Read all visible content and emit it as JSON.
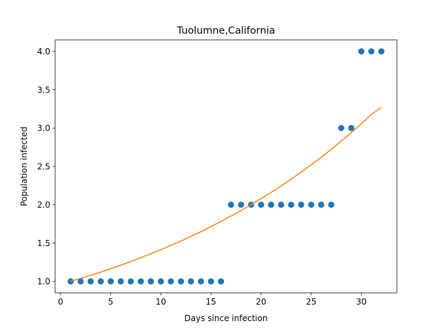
{
  "chart_data": {
    "type": "scatter",
    "title": "Tuolumne,California",
    "xlabel": "Days since infection",
    "ylabel": "Population infected",
    "xlim": [
      -0.55,
      33.55
    ],
    "ylim": [
      0.85,
      4.15
    ],
    "xticks": [
      0,
      5,
      10,
      15,
      20,
      25,
      30
    ],
    "xtick_labels": [
      "0",
      "5",
      "10",
      "15",
      "20",
      "25",
      "30"
    ],
    "yticks": [
      1.0,
      1.5,
      2.0,
      2.5,
      3.0,
      3.5,
      4.0
    ],
    "ytick_labels": [
      "1.0",
      "1.5",
      "2.0",
      "2.5",
      "3.0",
      "3.5",
      "4.0"
    ],
    "grid": false,
    "series": [
      {
        "kind": "scatter",
        "color": "#1f77b4",
        "x": [
          1,
          2,
          3,
          4,
          5,
          6,
          7,
          8,
          9,
          10,
          11,
          12,
          13,
          14,
          15,
          16,
          17,
          18,
          19,
          20,
          21,
          22,
          23,
          24,
          25,
          26,
          27,
          28,
          29,
          30,
          31,
          32
        ],
        "y": [
          1,
          1,
          1,
          1,
          1,
          1,
          1,
          1,
          1,
          1,
          1,
          1,
          1,
          1,
          1,
          1,
          2,
          2,
          2,
          2,
          2,
          2,
          2,
          2,
          2,
          2,
          2,
          3,
          3,
          4,
          4,
          4
        ]
      },
      {
        "kind": "line",
        "color": "#ff7f0e",
        "x": [
          1,
          2,
          3,
          4,
          5,
          6,
          7,
          8,
          9,
          10,
          11,
          12,
          13,
          14,
          15,
          16,
          17,
          18,
          19,
          20,
          21,
          22,
          23,
          24,
          25,
          26,
          27,
          28,
          29,
          30,
          31,
          32
        ],
        "y": [
          1.0,
          1.04,
          1.08,
          1.12,
          1.166,
          1.211,
          1.259,
          1.308,
          1.36,
          1.413,
          1.469,
          1.527,
          1.587,
          1.649,
          1.714,
          1.782,
          1.852,
          1.925,
          2.0,
          2.079,
          2.16,
          2.245,
          2.334,
          2.425,
          2.521,
          2.619,
          2.722,
          2.83,
          2.94,
          3.056,
          3.176,
          3.27
        ]
      }
    ]
  }
}
